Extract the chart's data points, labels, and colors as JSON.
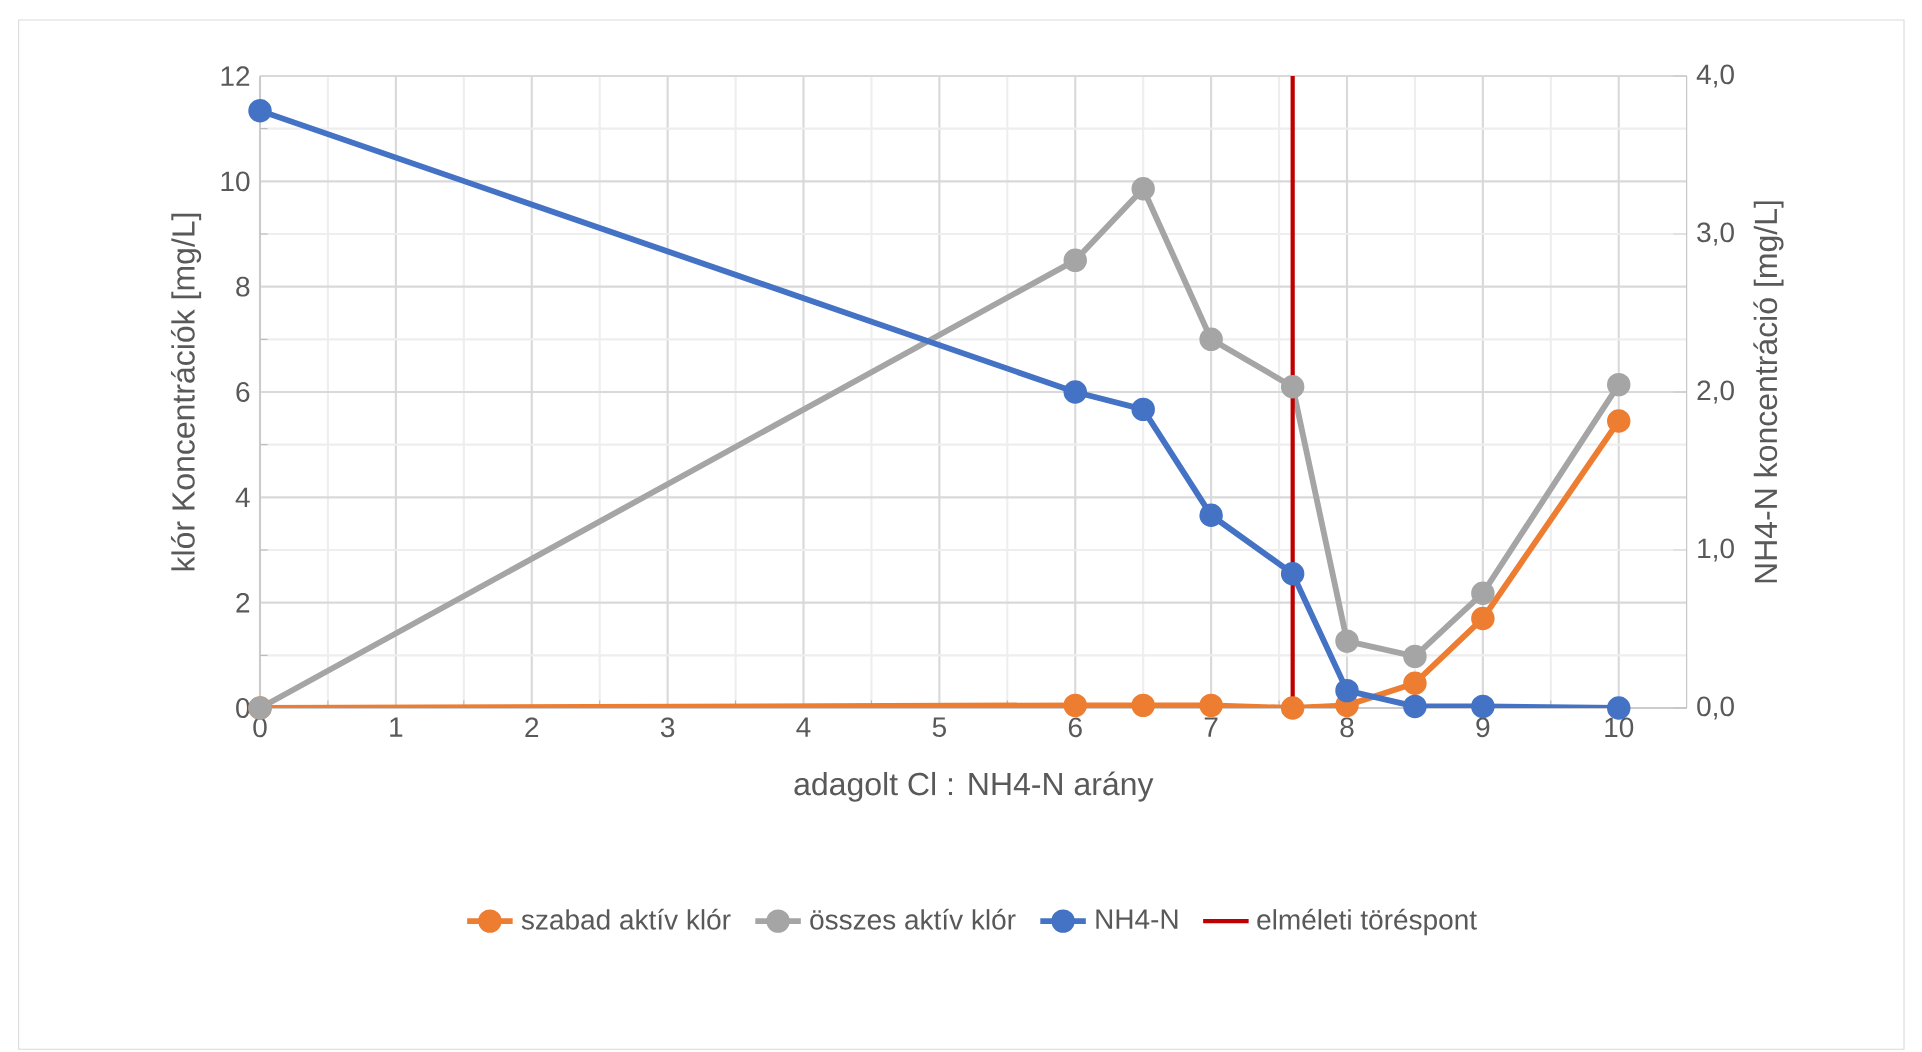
{
  "chart_data": {
    "type": "line",
    "xlabel": "adagolt Cl : NH4-N arány",
    "ylabel": "klór Koncentrációk [mg/L]",
    "y2label": "NH4-N koncentráció [mg/L]",
    "x": [
      0,
      6,
      6.5,
      7,
      7.6,
      8,
      8.5,
      9,
      10
    ],
    "series": [
      {
        "name": "szabad aktív klór",
        "color": "#ed7d31",
        "values": [
          0,
          0.05,
          0.05,
          0.05,
          0.0,
          0.05,
          0.47,
          1.7,
          5.45
        ]
      },
      {
        "name": "összes aktív klór",
        "color": "#a5a5a5",
        "values": [
          0,
          8.5,
          9.86,
          7.0,
          6.1,
          1.27,
          0.98,
          2.18,
          6.14
        ]
      },
      {
        "name": "NH4-N",
        "color": "#4472c4",
        "axis": "y2",
        "values": [
          3.78,
          2.0,
          1.89,
          1.22,
          0.85,
          0.11,
          0.01,
          0.01,
          0.0
        ]
      }
    ],
    "ref_lines": [
      {
        "axis": "x",
        "value": 7.6,
        "label": "elméleti töréspont",
        "color": "#c00000"
      }
    ],
    "xlim": [
      0,
      10.5
    ],
    "xticks": [
      0,
      1,
      2,
      3,
      4,
      5,
      6,
      7,
      8,
      9,
      10
    ],
    "ylim": [
      0,
      12
    ],
    "yticks": [
      0,
      2,
      4,
      6,
      8,
      10,
      12
    ],
    "y2lim": [
      0,
      4
    ],
    "y2ticks": [
      {
        "value": 0,
        "label": "0,0"
      },
      {
        "value": 1,
        "label": "1,0"
      },
      {
        "value": 2,
        "label": "2,0"
      },
      {
        "value": 3,
        "label": "3,0"
      },
      {
        "value": 4,
        "label": "4,0"
      }
    ],
    "grid": true,
    "legend": "bottom",
    "marker": "circle",
    "line_style": "solid"
  }
}
